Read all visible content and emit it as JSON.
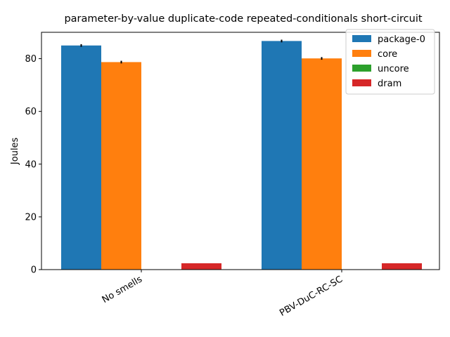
{
  "chart_data": {
    "type": "bar",
    "title": "parameter-by-value duplicate-code repeated-conditionals short-circuit",
    "xlabel": "",
    "ylabel": "Joules",
    "categories": [
      "No smells",
      "PBV-DuC-RC-SC"
    ],
    "ylim": [
      0,
      90
    ],
    "yticks": [
      0,
      20,
      40,
      60,
      80
    ],
    "grid": false,
    "legend_position": "top-right",
    "series": [
      {
        "name": "package-0",
        "color": "#1f77b4",
        "values": [
          85.0,
          86.7
        ],
        "errors": [
          0.5,
          0.5
        ]
      },
      {
        "name": "core",
        "color": "#ff7f0e",
        "values": [
          78.7,
          80.1
        ],
        "errors": [
          0.5,
          0.5
        ]
      },
      {
        "name": "uncore",
        "color": "#2ca02c",
        "values": [
          0.0,
          0.0
        ],
        "errors": [
          0,
          0
        ]
      },
      {
        "name": "dram",
        "color": "#d62728",
        "values": [
          2.4,
          2.4
        ],
        "errors": [
          0,
          0
        ]
      }
    ]
  }
}
